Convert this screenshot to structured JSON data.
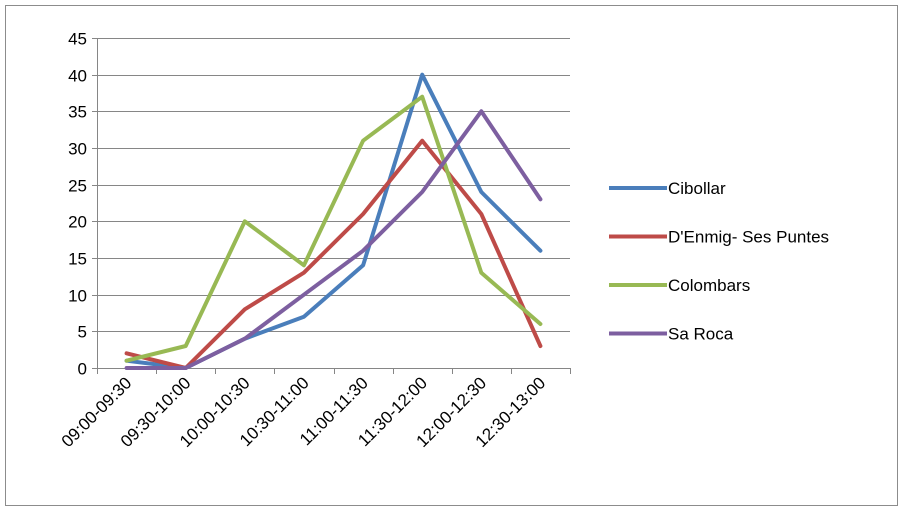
{
  "chart_data": {
    "type": "line",
    "title": "",
    "xlabel": "",
    "ylabel": "",
    "categories": [
      "09:00-09:30",
      "09:30-10:00",
      "10:00-10:30",
      "10:30-11:00",
      "11:00-11:30",
      "11:30-12:00",
      "12:00-12:30",
      "12:30-13:00"
    ],
    "ylim": [
      0,
      45
    ],
    "yticks": [
      0,
      5,
      10,
      15,
      20,
      25,
      30,
      35,
      40,
      45
    ],
    "grid": "horizontal",
    "legend_position": "right",
    "series": [
      {
        "name": "Cibollar",
        "color": "#4a7ebb",
        "values": [
          1,
          0,
          4,
          7,
          14,
          40,
          24,
          16
        ]
      },
      {
        "name": "D'Enmig- Ses Puntes",
        "color": "#be4b48",
        "values": [
          2,
          0,
          8,
          13,
          21,
          31,
          21,
          3
        ]
      },
      {
        "name": "Colombars",
        "color": "#98b954",
        "values": [
          1,
          3,
          20,
          14,
          31,
          37,
          13,
          6
        ]
      },
      {
        "name": "Sa Roca",
        "color": "#7d5fa0",
        "values": [
          0,
          0,
          4,
          10,
          16,
          24,
          35,
          23
        ]
      }
    ]
  }
}
